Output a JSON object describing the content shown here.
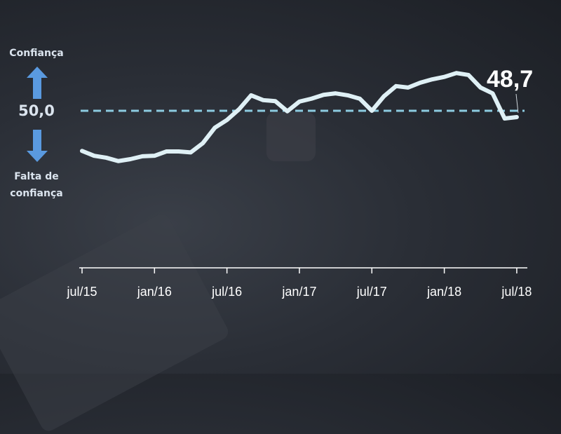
{
  "chart_data": {
    "type": "line",
    "title": "",
    "xlabel": "",
    "ylabel": "",
    "x_tick_labels": [
      "jul/15",
      "jan/16",
      "jul/16",
      "jan/17",
      "jul/17",
      "jan/18",
      "jul/18"
    ],
    "series": [
      {
        "values": [
          41.7,
          40.7,
          40.3,
          39.6,
          40.0,
          40.6,
          40.7,
          41.6,
          41.6,
          41.4,
          43.3,
          46.5,
          48.1,
          50.3,
          53.2,
          52.2,
          52.0,
          49.9,
          51.9,
          52.5,
          53.3,
          53.6,
          53.2,
          52.5,
          50.0,
          53.0,
          55.1,
          54.8,
          55.8,
          56.5,
          57.0,
          57.8,
          57.4,
          54.8,
          53.6,
          48.4,
          48.7
        ],
        "color": "#dff0f5"
      }
    ],
    "reference_line": {
      "value": 50.0,
      "label": "50,0",
      "color": "#8ccbe0",
      "style": "dashed"
    },
    "last_value_label": "48,7",
    "upper_label": "Confiança",
    "lower_label_line1": "Falta de",
    "lower_label_line2": "confiança",
    "arrow_color": "#5a9ae0",
    "grid": false
  }
}
